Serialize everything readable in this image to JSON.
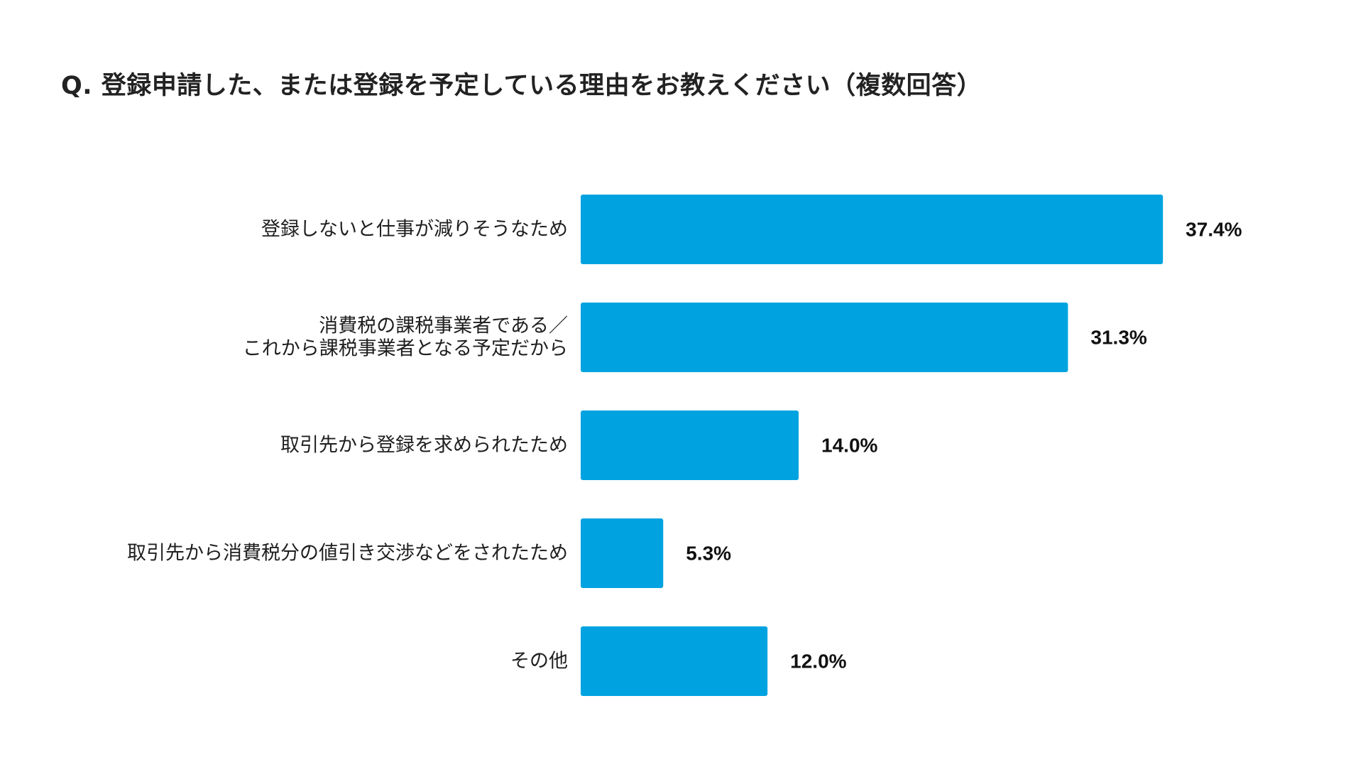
{
  "page": {
    "question": "Q. 登録申請した、または登録を予定している理由をお教えください（複数回答）"
  },
  "chart_data": {
    "type": "bar",
    "orientation": "horizontal",
    "title": "Q. 登録申請した、または登録を予定している理由をお教えください（複数回答）",
    "xlabel": "",
    "ylabel": "",
    "unit": "%",
    "grid": false,
    "legend": "none",
    "xlim": [
      0,
      40
    ],
    "bar_color": "#00A3E0",
    "categories": [
      [
        "登録しないと仕事が減りそうなため"
      ],
      [
        "消費税の課税事業者である／",
        "これから課税事業者となる予定だから"
      ],
      [
        "取引先から登録を求められたため"
      ],
      [
        "取引先から消費税分の値引き交渉などをされたため"
      ],
      [
        "その他"
      ]
    ],
    "values": [
      37.4,
      31.3,
      14.0,
      5.3,
      12.0
    ],
    "value_labels": [
      "37.4%",
      "31.3%",
      "14.0%",
      "5.3%",
      "12.0%"
    ]
  }
}
